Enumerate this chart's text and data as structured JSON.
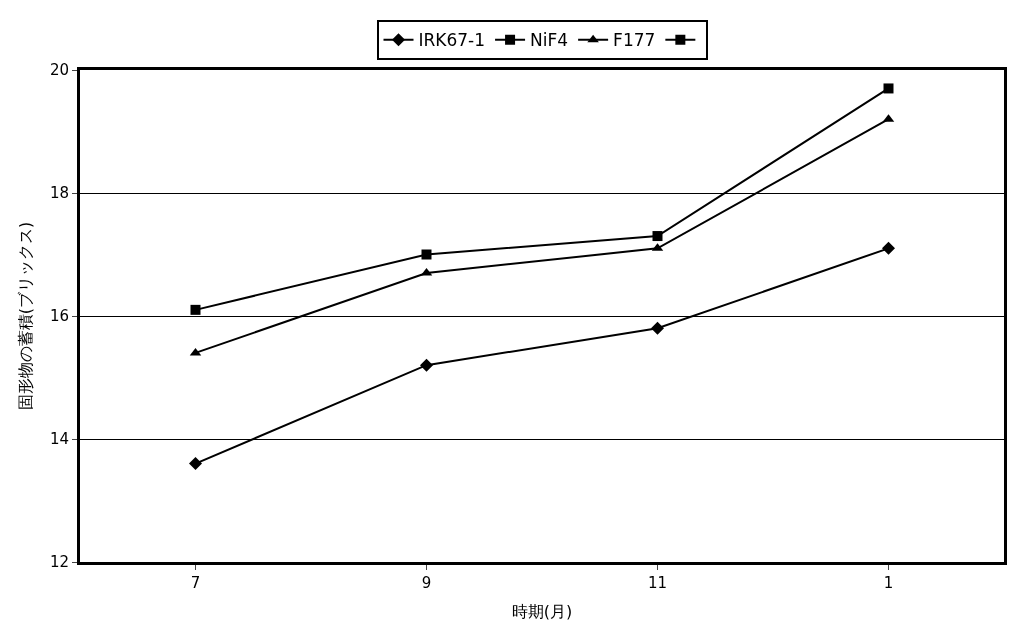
{
  "chart_data": {
    "type": "line",
    "xlabel": "時期(月)",
    "ylabel": "固形物の蓄積(ブリックス)",
    "categories": [
      "7",
      "9",
      "11",
      "1"
    ],
    "series": [
      {
        "name": "IRK67-1",
        "color": "#000000",
        "marker": "diamond",
        "values": [
          13.6,
          15.2,
          15.8,
          17.1
        ]
      },
      {
        "name": "NiF4",
        "color": "#000000",
        "marker": "square",
        "values": [
          16.1,
          17.0,
          17.3,
          19.7
        ]
      },
      {
        "name": "F177",
        "color": "#000000",
        "marker": "triangle",
        "values": [
          15.4,
          16.7,
          17.1,
          19.2
        ]
      },
      {
        "color": "#000000",
        "marker": "square",
        "values": [
          null,
          null,
          null,
          null
        ]
      }
    ],
    "ylim": [
      12,
      20
    ],
    "yticks": [
      12,
      14,
      16,
      18,
      20
    ],
    "grid": "y",
    "legend": "top",
    "line_style": "solid"
  }
}
